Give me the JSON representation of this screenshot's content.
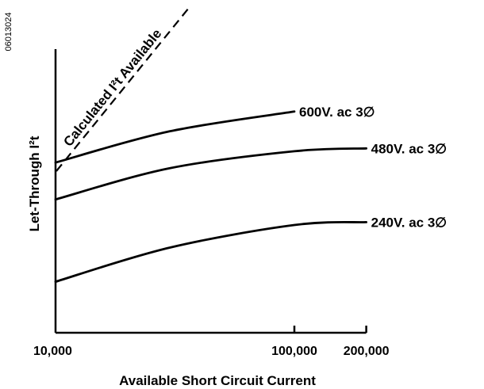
{
  "figure_id": "06013024",
  "chart_data": {
    "type": "line",
    "title": "",
    "xlabel": "Available Short Circuit Current",
    "ylabel": "Let-Through I²t",
    "x_scale": "log",
    "x_ticks": [
      {
        "value": 10000,
        "label": "10,000"
      },
      {
        "value": 100000,
        "label": "100,000"
      },
      {
        "value": 200000,
        "label": "200,000"
      }
    ],
    "y_tick_labels": "none",
    "grid": false,
    "reference_line": {
      "name": "Calculated I²t Available",
      "style": "dashed"
    },
    "series": [
      {
        "name": "600V. ac 3∅",
        "relative_values": [
          {
            "x": 10000,
            "y": 0.6
          },
          {
            "x": 30000,
            "y": 0.71
          },
          {
            "x": 100000,
            "y": 0.78
          }
        ]
      },
      {
        "name": "480V. ac 3∅",
        "relative_values": [
          {
            "x": 10000,
            "y": 0.47
          },
          {
            "x": 30000,
            "y": 0.58
          },
          {
            "x": 100000,
            "y": 0.64
          },
          {
            "x": 200000,
            "y": 0.65
          }
        ]
      },
      {
        "name": "240V. ac 3∅",
        "relative_values": [
          {
            "x": 10000,
            "y": 0.18
          },
          {
            "x": 30000,
            "y": 0.3
          },
          {
            "x": 100000,
            "y": 0.38
          },
          {
            "x": 200000,
            "y": 0.39
          }
        ]
      }
    ]
  }
}
